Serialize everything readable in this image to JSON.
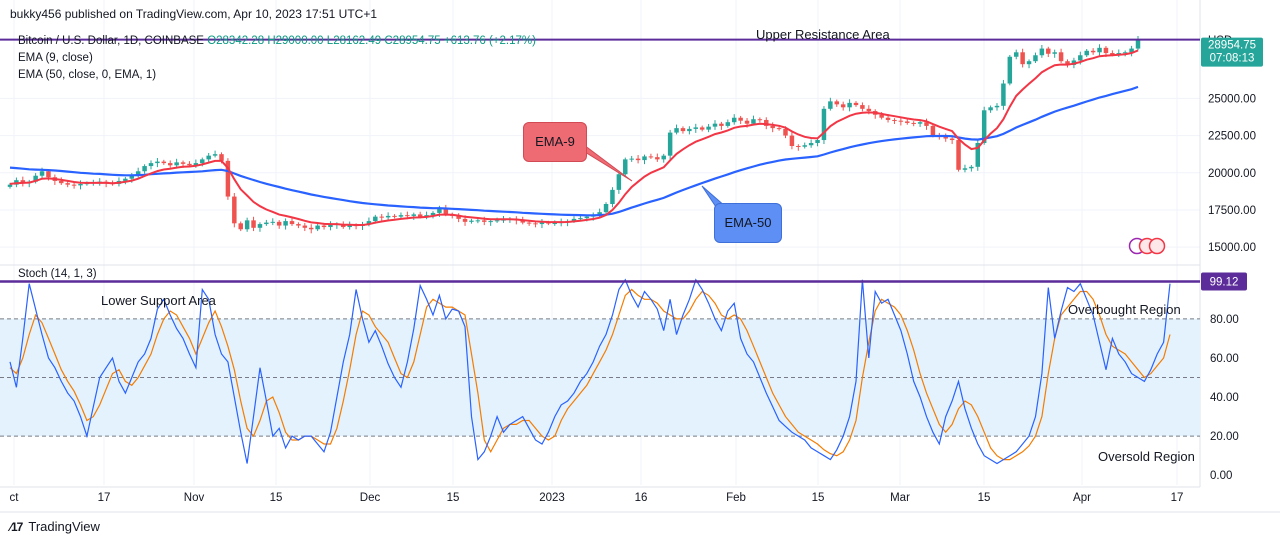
{
  "header": {
    "published": "bukky456 published on TradingView.com, Apr 10, 2023 17:51 UTC+1"
  },
  "legend": {
    "symbol": "Bitcoin / U.S. Dollar, 1D, COINBASE",
    "open": "O28342.28",
    "high": "H29000.00",
    "low": "L28162.49",
    "close": "C28954.75",
    "change": "+613.76 (+2.17%)",
    "ema9": "EMA (9, close)",
    "ema50": "EMA (50, close, 0, EMA, 1)",
    "stoch": "Stoch (14, 1, 3)"
  },
  "annotations": {
    "upper_resistance": "Upper Resistance Area",
    "lower_support": "Lower Support Area",
    "overbought": "Overbought Region",
    "oversold": "Oversold Region",
    "ema9_callout": "EMA-9",
    "ema50_callout": "EMA-50"
  },
  "price_axis": {
    "currency": "USD",
    "last_price": "28954.75",
    "countdown": "07:08:13",
    "ticks": [
      "25000.00",
      "22500.00",
      "20000.00",
      "17500.00",
      "15000.00"
    ]
  },
  "stoch_axis": {
    "last_value": "99.12",
    "ticks": [
      "80.00",
      "60.00",
      "40.00",
      "20.00",
      "0.00"
    ]
  },
  "time_axis": [
    "ct",
    "17",
    "Nov",
    "15",
    "Dec",
    "15",
    "2023",
    "16",
    "Feb",
    "15",
    "Mar",
    "15",
    "Apr",
    "17"
  ],
  "footer": {
    "brand": "TradingView"
  },
  "colors": {
    "up": "#26a69a",
    "down": "#ef5350",
    "ema9": "#f23645",
    "ema50": "#2962ff",
    "resistance": "#5b2c9a",
    "stoch_k": "#2962ff",
    "stoch_d": "#f57c00",
    "stoch_band": "#e3f2fd",
    "ema9_callout_bg": "#ef6b73",
    "ema50_callout_bg": "#5d8ff5"
  },
  "chart_data": [
    {
      "type": "candlestick",
      "title": "Bitcoin / U.S. Dollar, 1D, COINBASE",
      "y_range": [
        14000,
        29800
      ],
      "resistance_level": 28954.75,
      "x_ticks": [
        "ct",
        "17",
        "Nov",
        "15",
        "Dec",
        "15",
        "2023",
        "16",
        "Feb",
        "15",
        "Mar",
        "15",
        "Apr",
        "17"
      ],
      "closes": [
        19200,
        19500,
        19300,
        19400,
        19800,
        20100,
        19700,
        19450,
        19300,
        19200,
        19150,
        19250,
        19300,
        19350,
        19400,
        19300,
        19250,
        19450,
        19600,
        19800,
        20100,
        20450,
        20650,
        20750,
        20650,
        20500,
        20700,
        20600,
        20500,
        20650,
        20900,
        21150,
        21250,
        20800,
        18400,
        16600,
        16200,
        16800,
        16300,
        16550,
        16650,
        16700,
        16450,
        16750,
        16550,
        16450,
        16300,
        16200,
        16450,
        16350,
        16500,
        16550,
        16350,
        16480,
        16420,
        16520,
        16750,
        17050,
        17000,
        17100,
        17050,
        17150,
        17100,
        17200,
        17050,
        17150,
        17300,
        17600,
        17200,
        17100,
        16900,
        16700,
        16780,
        16800,
        16700,
        16750,
        16800,
        16850,
        16900,
        16800,
        16650,
        16600,
        16550,
        16650,
        16600,
        16620,
        16680,
        16750,
        16900,
        16950,
        17050,
        17150,
        17350,
        17900,
        18850,
        19900,
        20900,
        20950,
        20850,
        21100,
        21050,
        20900,
        21150,
        22700,
        23000,
        22800,
        22950,
        23050,
        22900,
        23100,
        23300,
        23150,
        23400,
        23700,
        23500,
        23300,
        23600,
        23550,
        23150,
        23000,
        22950,
        22500,
        21800,
        21750,
        21850,
        22000,
        22200,
        24300,
        24800,
        24600,
        24400,
        24700,
        24550,
        24300,
        24150,
        23900,
        23700,
        23550,
        23500,
        23450,
        23350,
        23300,
        23400,
        23150,
        22500,
        22400,
        22300,
        22200,
        20200,
        20300,
        20400,
        22000,
        24200,
        24400,
        24500,
        26000,
        27800,
        28100,
        27300,
        27500,
        27900,
        28350,
        28000,
        28100,
        27500,
        27250,
        27550,
        27900,
        28200,
        28100,
        28400,
        28050,
        27950,
        28050,
        28100,
        28350,
        28954.75
      ],
      "ema9": [
        19250,
        19300,
        19320,
        19340,
        19450,
        19600,
        19620,
        19580,
        19520,
        19450,
        19380,
        19330,
        19320,
        19320,
        19330,
        19320,
        19300,
        19330,
        19390,
        19470,
        19600,
        19780,
        19960,
        20110,
        20220,
        20270,
        20350,
        20400,
        20420,
        20470,
        20560,
        20680,
        20800,
        20800,
        20320,
        19570,
        18890,
        18470,
        18040,
        17750,
        17530,
        17370,
        17190,
        17100,
        17000,
        16890,
        16770,
        16660,
        16620,
        16560,
        16550,
        16550,
        16510,
        16500,
        16490,
        16490,
        16540,
        16650,
        16720,
        16790,
        16840,
        16900,
        16940,
        16990,
        17000,
        17030,
        17090,
        17190,
        17190,
        17180,
        17120,
        17040,
        17000,
        16960,
        16910,
        16880,
        16870,
        16870,
        16880,
        16860,
        16820,
        16780,
        16730,
        16710,
        16690,
        16680,
        16680,
        16690,
        16730,
        16780,
        16830,
        16890,
        16980,
        17160,
        17500,
        17980,
        18560,
        19040,
        19400,
        19740,
        20000,
        20180,
        20370,
        20830,
        21270,
        21580,
        21850,
        22090,
        22250,
        22420,
        22600,
        22710,
        22850,
        23020,
        23110,
        23150,
        23240,
        23300,
        23270,
        23220,
        23160,
        23030,
        22780,
        22570,
        22420,
        22340,
        22310,
        22710,
        23130,
        23420,
        23620,
        23830,
        23970,
        24030,
        24060,
        24030,
        23960,
        23880,
        23800,
        23730,
        23650,
        23580,
        23540,
        23460,
        23270,
        23100,
        22950,
        22800,
        22280,
        21890,
        21590,
        21670,
        22180,
        22630,
        23000,
        23600,
        24440,
        25170,
        25600,
        25980,
        26360,
        26760,
        27010,
        27230,
        27280,
        27270,
        27330,
        27450,
        27600,
        27700,
        27840,
        27880,
        27900,
        27930,
        27970,
        28050,
        28230
      ],
      "ema50": [
        20350,
        20310,
        20270,
        20230,
        20210,
        20200,
        20180,
        20150,
        20120,
        20080,
        20040,
        20000,
        19970,
        19940,
        19920,
        19890,
        19860,
        19840,
        19830,
        19830,
        19840,
        19860,
        19900,
        19930,
        19960,
        19980,
        20010,
        20030,
        20050,
        20070,
        20100,
        20140,
        20180,
        20200,
        20110,
        19950,
        19790,
        19650,
        19510,
        19380,
        19260,
        19150,
        19040,
        18930,
        18830,
        18730,
        18640,
        18540,
        18460,
        18380,
        18300,
        18230,
        18160,
        18090,
        18030,
        17970,
        17920,
        17880,
        17840,
        17800,
        17770,
        17740,
        17710,
        17690,
        17660,
        17640,
        17620,
        17620,
        17600,
        17580,
        17560,
        17530,
        17500,
        17480,
        17450,
        17430,
        17400,
        17380,
        17360,
        17340,
        17310,
        17290,
        17260,
        17240,
        17220,
        17200,
        17180,
        17170,
        17160,
        17150,
        17140,
        17140,
        17150,
        17180,
        17250,
        17360,
        17510,
        17660,
        17790,
        17930,
        18060,
        18180,
        18310,
        18490,
        18670,
        18840,
        19000,
        19160,
        19310,
        19460,
        19610,
        19750,
        19890,
        20040,
        20170,
        20300,
        20420,
        20540,
        20640,
        20730,
        20820,
        20890,
        20940,
        20980,
        21020,
        21060,
        21110,
        21230,
        21360,
        21480,
        21590,
        21710,
        21810,
        21900,
        21990,
        22060,
        22130,
        22190,
        22240,
        22290,
        22340,
        22380,
        22420,
        22460,
        22470,
        22470,
        22470,
        22460,
        22380,
        22300,
        22240,
        22230,
        22300,
        22380,
        22460,
        22610,
        22820,
        23040,
        23220,
        23390,
        23570,
        23760,
        23940,
        24110,
        24250,
        24380,
        24510,
        24650,
        24790,
        24920,
        25060,
        25170,
        25290,
        25400,
        25510,
        25620,
        25770
      ]
    },
    {
      "type": "line",
      "title": "Stoch (14, 1, 3)",
      "y_range": [
        -5,
        105
      ],
      "bands": [
        20,
        50,
        80
      ],
      "last_value": 99.12,
      "series": [
        {
          "name": "%K",
          "values": [
            58,
            45,
            70,
            98,
            85,
            72,
            60,
            55,
            48,
            42,
            38,
            30,
            20,
            35,
            50,
            55,
            60,
            48,
            42,
            50,
            58,
            62,
            70,
            85,
            90,
            82,
            75,
            70,
            62,
            55,
            95,
            90,
            72,
            62,
            58,
            40,
            22,
            6,
            30,
            55,
            38,
            20,
            24,
            14,
            20,
            18,
            20,
            20,
            16,
            12,
            22,
            40,
            58,
            72,
            95,
            80,
            68,
            74,
            66,
            57,
            50,
            45,
            58,
            75,
            97,
            90,
            82,
            92,
            80,
            85,
            84,
            76,
            30,
            8,
            12,
            20,
            30,
            22,
            26,
            28,
            30,
            24,
            18,
            16,
            22,
            30,
            36,
            38,
            42,
            48,
            52,
            58,
            66,
            72,
            82,
            95,
            100,
            92,
            86,
            94,
            90,
            85,
            74,
            90,
            72,
            82,
            90,
            100,
            95,
            88,
            80,
            74,
            84,
            88,
            70,
            62,
            58,
            50,
            42,
            35,
            28,
            25,
            22,
            20,
            18,
            14,
            12,
            10,
            8,
            13,
            20,
            30,
            48,
            100,
            60,
            94,
            88,
            90,
            82,
            74,
            62,
            48,
            40,
            30,
            22,
            16,
            30,
            38,
            48,
            34,
            24,
            16,
            10,
            8,
            6,
            8,
            10,
            12,
            16,
            20,
            30,
            52,
            96,
            70,
            84,
            96,
            94,
            98,
            90,
            82,
            68,
            54,
            70,
            62,
            58,
            52,
            50,
            48,
            54,
            62,
            68,
            98
          ]
        },
        {
          "name": "%D",
          "values": [
            55,
            52,
            60,
            72,
            82,
            78,
            70,
            62,
            54,
            48,
            43,
            36,
            28,
            30,
            36,
            44,
            52,
            54,
            48,
            46,
            50,
            56,
            62,
            72,
            80,
            84,
            82,
            76,
            70,
            62,
            70,
            78,
            84,
            76,
            66,
            54,
            38,
            24,
            20,
            28,
            38,
            40,
            32,
            22,
            18,
            18,
            20,
            20,
            18,
            16,
            16,
            24,
            38,
            54,
            72,
            84,
            82,
            76,
            72,
            68,
            60,
            52,
            50,
            58,
            72,
            86,
            90,
            88,
            86,
            86,
            84,
            82,
            62,
            42,
            18,
            12,
            18,
            24,
            26,
            26,
            28,
            28,
            24,
            20,
            18,
            20,
            28,
            34,
            38,
            42,
            46,
            52,
            58,
            64,
            72,
            82,
            92,
            95,
            92,
            90,
            90,
            88,
            84,
            82,
            80,
            80,
            84,
            90,
            94,
            92,
            88,
            82,
            80,
            82,
            80,
            74,
            66,
            58,
            50,
            42,
            36,
            30,
            26,
            22,
            20,
            18,
            16,
            13,
            11,
            10,
            12,
            18,
            28,
            50,
            68,
            84,
            90,
            88,
            86,
            82,
            74,
            64,
            52,
            42,
            34,
            26,
            22,
            26,
            34,
            38,
            36,
            30,
            22,
            14,
            10,
            8,
            8,
            10,
            12,
            15,
            20,
            30,
            52,
            70,
            82,
            86,
            90,
            94,
            94,
            90,
            82,
            72,
            66,
            64,
            62,
            58,
            54,
            50,
            52,
            56,
            60,
            72
          ]
        }
      ]
    }
  ]
}
